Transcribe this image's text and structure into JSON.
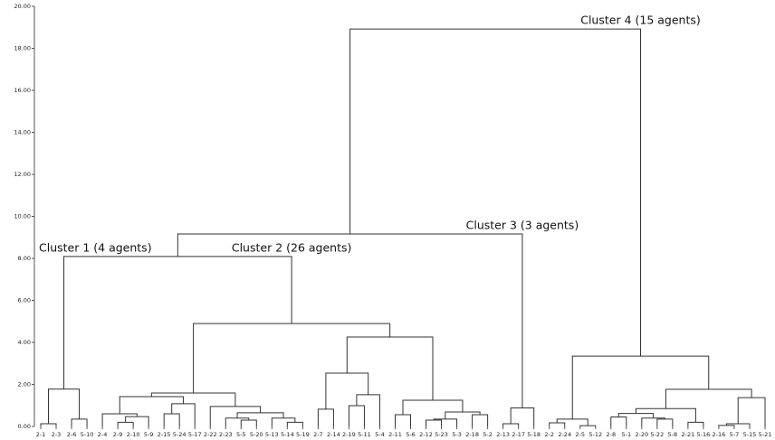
{
  "chart_data": {
    "type": "dendrogram",
    "ylim": [
      0,
      20
    ],
    "yticks": [
      {
        "value": 0,
        "label": "0.00"
      },
      {
        "value": 2,
        "label": "2.00"
      },
      {
        "value": 4,
        "label": "4.00"
      },
      {
        "value": 6,
        "label": "6.00"
      },
      {
        "value": 8,
        "label": "8.00"
      },
      {
        "value": 10,
        "label": "10.00"
      },
      {
        "value": 12,
        "label": "12.00"
      },
      {
        "value": 14,
        "label": "14.00"
      },
      {
        "value": 16,
        "label": "16.00"
      },
      {
        "value": 18,
        "label": "18.00"
      },
      {
        "value": 20,
        "label": "20.00"
      }
    ],
    "color": "#333333",
    "tree": {
      "height": 18.92,
      "children": [
        {
          "height": 9.16,
          "children": [
            {
              "height": 8.09,
              "children": [
                {
                  "height": 1.78,
                  "annotation": "Cluster 1 (4 agents)",
                  "children": [
                    {
                      "height": 0.13,
                      "children": [
                        {
                          "label": "2-1"
                        },
                        {
                          "label": "2-3"
                        }
                      ]
                    },
                    {
                      "height": 0.35,
                      "children": [
                        {
                          "label": "2-6"
                        },
                        {
                          "label": "5-10"
                        }
                      ]
                    }
                  ]
                },
                {
                  "height": 4.9,
                  "annotation": "Cluster 2 (26 agents)",
                  "children": [
                    {
                      "height": 1.59,
                      "children": [
                        {
                          "height": 1.42,
                          "children": [
                            {
                              "height": 0.6,
                              "children": [
                                {
                                  "label": "2-4"
                                },
                                {
                                  "height": 0.47,
                                  "children": [
                                    {
                                      "height": 0.2,
                                      "children": [
                                        {
                                          "label": "2-9"
                                        },
                                        {
                                          "label": "2-10"
                                        }
                                      ]
                                    },
                                    {
                                      "label": "5-9"
                                    }
                                  ]
                                }
                              ]
                            },
                            {
                              "height": 1.08,
                              "children": [
                                {
                                  "height": 0.6,
                                  "children": [
                                    {
                                      "label": "2-15"
                                    },
                                    {
                                      "label": "5-24"
                                    }
                                  ]
                                },
                                {
                                  "label": "5-17"
                                }
                              ]
                            }
                          ]
                        },
                        {
                          "height": 0.95,
                          "children": [
                            {
                              "label": "2-22"
                            },
                            {
                              "height": 0.65,
                              "children": [
                                {
                                  "height": 0.4,
                                  "children": [
                                    {
                                      "label": "2-23"
                                    },
                                    {
                                      "height": 0.3,
                                      "children": [
                                        {
                                          "label": "5-5"
                                        },
                                        {
                                          "label": "5-20"
                                        }
                                      ]
                                    }
                                  ]
                                },
                                {
                                  "height": 0.4,
                                  "children": [
                                    {
                                      "label": "5-13"
                                    },
                                    {
                                      "height": 0.2,
                                      "children": [
                                        {
                                          "label": "5-14"
                                        },
                                        {
                                          "label": "5-19"
                                        }
                                      ]
                                    }
                                  ]
                                }
                              ]
                            }
                          ]
                        }
                      ]
                    },
                    {
                      "height": 4.26,
                      "children": [
                        {
                          "height": 2.54,
                          "children": [
                            {
                              "height": 0.82,
                              "children": [
                                {
                                  "label": "2-7"
                                },
                                {
                                  "label": "2-14"
                                }
                              ]
                            },
                            {
                              "height": 1.51,
                              "children": [
                                {
                                  "height": 0.99,
                                  "children": [
                                    {
                                      "label": "2-19"
                                    },
                                    {
                                      "label": "5-11"
                                    }
                                  ]
                                },
                                {
                                  "label": "5-4"
                                }
                              ]
                            }
                          ]
                        },
                        {
                          "height": 1.25,
                          "children": [
                            {
                              "height": 0.56,
                              "children": [
                                {
                                  "label": "2-11"
                                },
                                {
                                  "label": "5-6"
                                }
                              ]
                            },
                            {
                              "height": 0.69,
                              "children": [
                                {
                                  "height": 0.35,
                                  "children": [
                                    {
                                      "height": 0.3,
                                      "children": [
                                        {
                                          "label": "2-12"
                                        },
                                        {
                                          "label": "5-23"
                                        }
                                      ]
                                    },
                                    {
                                      "label": "5-3"
                                    }
                                  ]
                                },
                                {
                                  "height": 0.56,
                                  "children": [
                                    {
                                      "label": "2-18"
                                    },
                                    {
                                      "label": "5-2"
                                    }
                                  ]
                                }
                              ]
                            }
                          ]
                        }
                      ]
                    }
                  ]
                }
              ]
            },
            {
              "height": 0.88,
              "annotation": "Cluster 3 (3 agents)",
              "children": [
                {
                  "height": 0.13,
                  "children": [
                    {
                      "label": "2-13"
                    },
                    {
                      "label": "2-17"
                    }
                  ]
                },
                {
                  "label": "5-18"
                }
              ]
            }
          ]
        },
        {
          "height": 3.35,
          "annotation": "Cluster 4 (15 agents)",
          "children": [
            {
              "height": 0.35,
              "children": [
                {
                  "height": 0.17,
                  "children": [
                    {
                      "label": "2-2"
                    },
                    {
                      "label": "2-24"
                    }
                  ]
                },
                {
                  "height": 0.04,
                  "children": [
                    {
                      "label": "2-5"
                    },
                    {
                      "label": "5-12"
                    }
                  ]
                }
              ]
            },
            {
              "height": 1.77,
              "children": [
                {
                  "height": 0.85,
                  "children": [
                    {
                      "height": 0.62,
                      "children": [
                        {
                          "height": 0.45,
                          "children": [
                            {
                              "label": "2-8"
                            },
                            {
                              "label": "5-1"
                            }
                          ]
                        },
                        {
                          "height": 0.4,
                          "children": [
                            {
                              "label": "2-20"
                            },
                            {
                              "height": 0.35,
                              "children": [
                                {
                                  "label": "5-22"
                                },
                                {
                                  "label": "5-8"
                                }
                              ]
                            }
                          ]
                        }
                      ]
                    },
                    {
                      "height": 0.2,
                      "children": [
                        {
                          "label": "2-21"
                        },
                        {
                          "label": "5-16"
                        }
                      ]
                    }
                  ]
                },
                {
                  "height": 1.37,
                  "children": [
                    {
                      "height": 0.13,
                      "children": [
                        {
                          "height": 0.05,
                          "children": [
                            {
                              "label": "2-16"
                            },
                            {
                              "label": "5-7"
                            }
                          ]
                        },
                        {
                          "label": "5-15"
                        }
                      ]
                    },
                    {
                      "label": "5-21"
                    }
                  ]
                }
              ]
            }
          ]
        }
      ]
    }
  }
}
